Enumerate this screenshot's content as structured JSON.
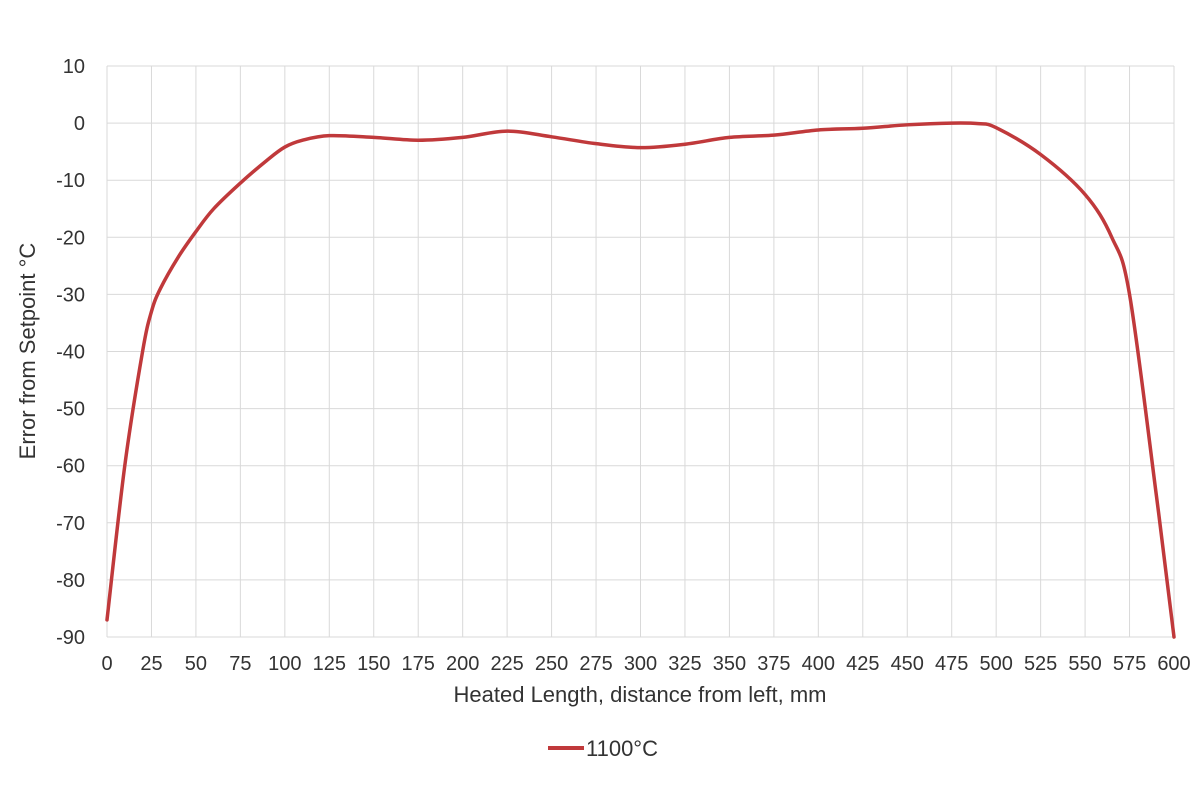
{
  "chart_data": {
    "type": "line",
    "xlabel": "Heated Length, distance from left, mm",
    "ylabel": "Error from Setpoint °C",
    "xlim": [
      0,
      600
    ],
    "ylim": [
      -90,
      10
    ],
    "x_ticks": [
      0,
      25,
      50,
      75,
      100,
      125,
      150,
      175,
      200,
      225,
      250,
      275,
      300,
      325,
      350,
      375,
      400,
      425,
      450,
      475,
      500,
      525,
      550,
      575,
      600
    ],
    "y_ticks": [
      10,
      0,
      -10,
      -20,
      -30,
      -40,
      -50,
      -60,
      -70,
      -80,
      -90
    ],
    "grid": true,
    "legend_position": "bottom",
    "series": [
      {
        "name": "1100°C",
        "color": "#c0393b",
        "points": [
          [
            0,
            -87
          ],
          [
            10,
            -60
          ],
          [
            20,
            -40
          ],
          [
            25,
            -33
          ],
          [
            30,
            -29
          ],
          [
            40,
            -23.5
          ],
          [
            50,
            -19
          ],
          [
            60,
            -15
          ],
          [
            75,
            -10.5
          ],
          [
            90,
            -6.5
          ],
          [
            100,
            -4.2
          ],
          [
            110,
            -3
          ],
          [
            125,
            -2.2
          ],
          [
            150,
            -2.5
          ],
          [
            175,
            -3
          ],
          [
            200,
            -2.5
          ],
          [
            225,
            -1.4
          ],
          [
            250,
            -2.4
          ],
          [
            275,
            -3.6
          ],
          [
            300,
            -4.3
          ],
          [
            325,
            -3.7
          ],
          [
            350,
            -2.5
          ],
          [
            375,
            -2.1
          ],
          [
            400,
            -1.2
          ],
          [
            425,
            -0.9
          ],
          [
            450,
            -0.3
          ],
          [
            475,
            0
          ],
          [
            490,
            -0.1
          ],
          [
            500,
            -0.8
          ],
          [
            525,
            -5.5
          ],
          [
            550,
            -12.5
          ],
          [
            565,
            -20
          ],
          [
            575,
            -30
          ],
          [
            590,
            -65
          ],
          [
            600,
            -90
          ]
        ]
      }
    ]
  }
}
